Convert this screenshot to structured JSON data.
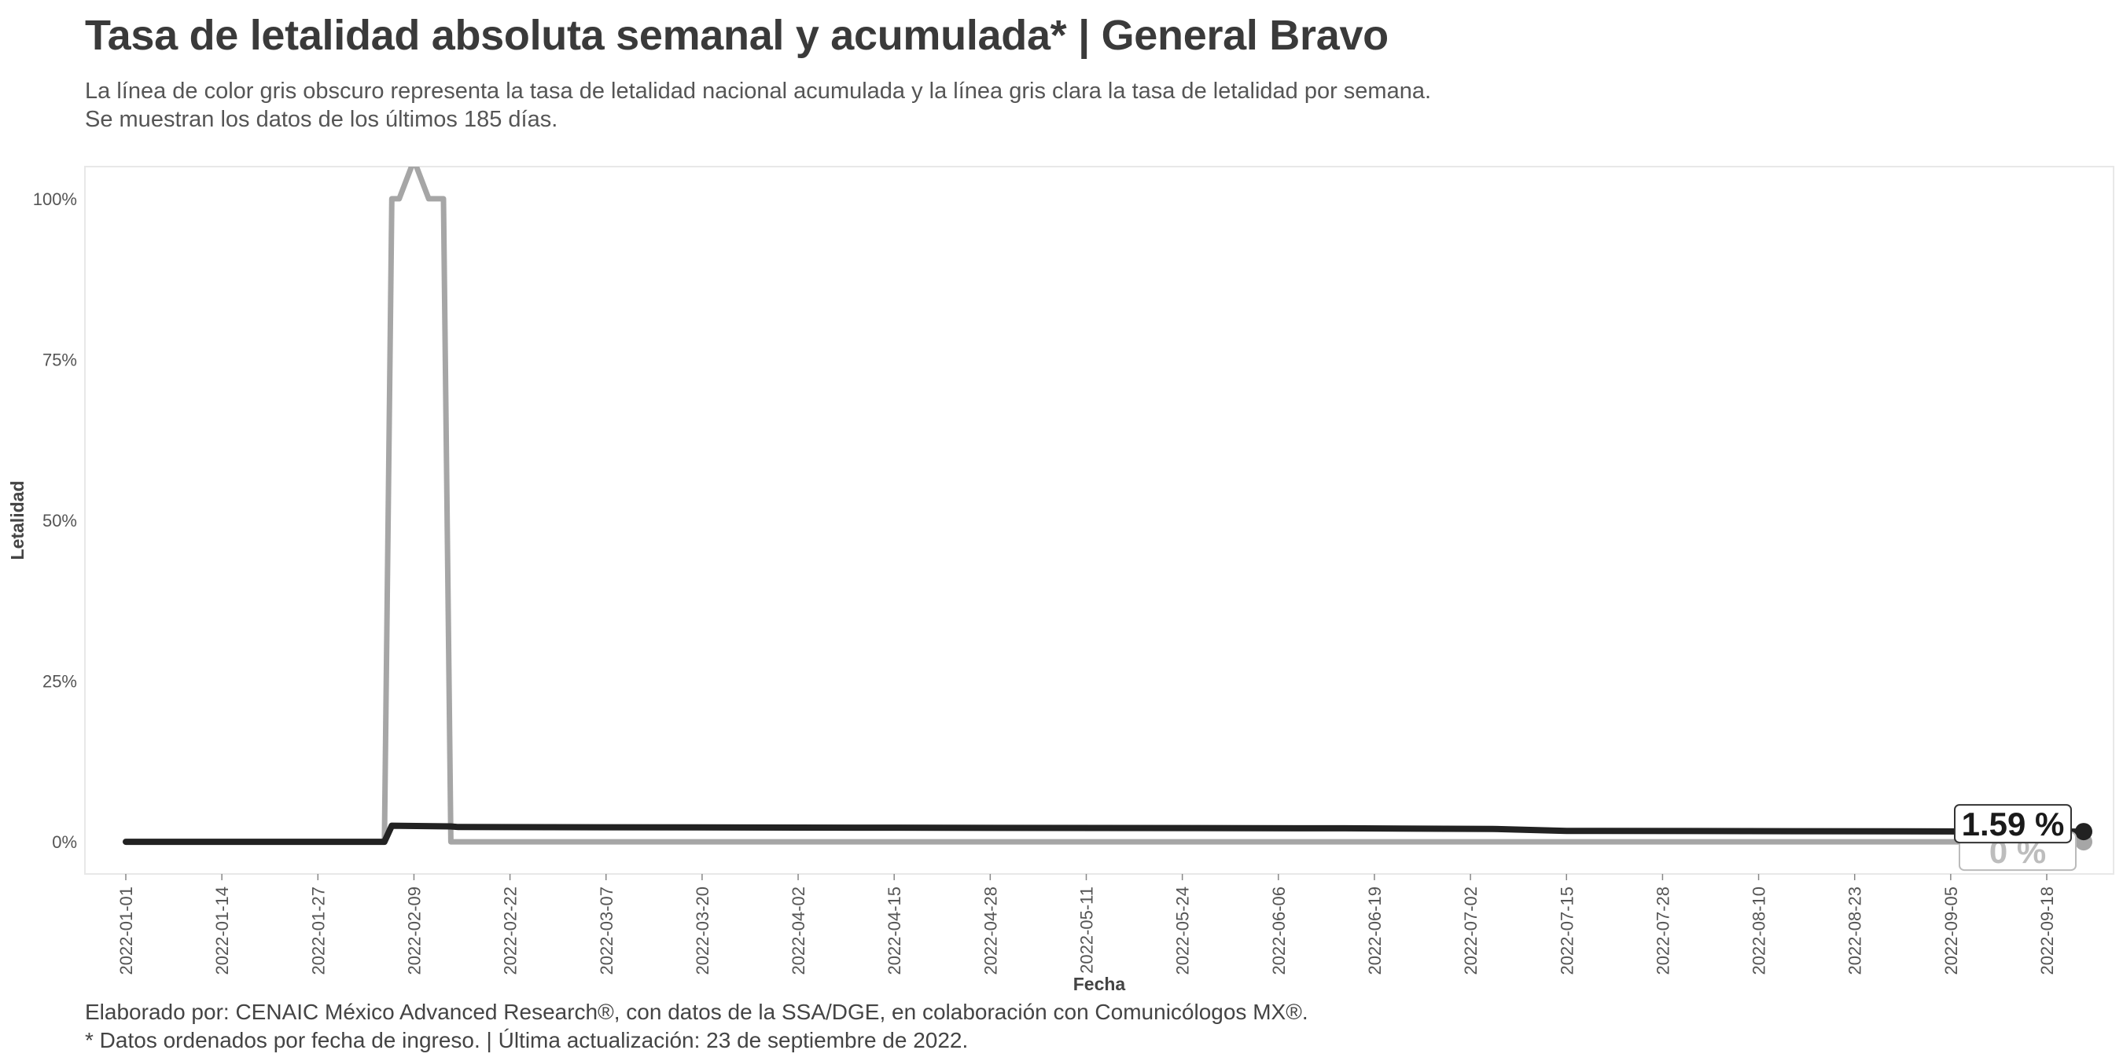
{
  "title": "Tasa de letalidad absoluta semanal y acumulada* | General Bravo",
  "subtitle_lines": [
    "La línea de color gris obscuro representa la tasa de letalidad nacional acumulada y la línea gris clara la tasa de letalidad por semana.",
    "Se muestran los datos de los últimos 185 días."
  ],
  "caption_lines": [
    "Elaborado por: CENAIC México Advanced Research®, con datos de la SSA/DGE, en colaboración con Comunicólogos MX®.",
    "* Datos ordenados por fecha de ingreso. | Última actualización: 23 de septiembre de 2022."
  ],
  "colors": {
    "cumulative": "#222222",
    "weekly": "#a6a6a6",
    "panel_border": "#e8e8e8"
  },
  "chart_data": {
    "type": "line",
    "title": "Tasa de letalidad absoluta semanal y acumulada* | General Bravo",
    "xlabel": "Fecha",
    "ylabel": "Letalidad",
    "x_range": [
      "2022-01-01",
      "2022-09-23"
    ],
    "ylim": [
      -5,
      105
    ],
    "y_ticks": [
      0,
      25,
      50,
      75,
      100
    ],
    "y_tick_labels": [
      "0%",
      "25%",
      "50%",
      "75%",
      "100%"
    ],
    "x_ticks": [
      "2022-01-01",
      "2022-01-14",
      "2022-01-27",
      "2022-02-09",
      "2022-02-22",
      "2022-03-07",
      "2022-03-20",
      "2022-04-02",
      "2022-04-15",
      "2022-04-28",
      "2022-05-11",
      "2022-05-24",
      "2022-06-06",
      "2022-06-19",
      "2022-07-02",
      "2022-07-15",
      "2022-07-28",
      "2022-08-10",
      "2022-08-23",
      "2022-09-05",
      "2022-09-18"
    ],
    "grid": false,
    "legend": "none",
    "series": [
      {
        "key": "weekly",
        "points": [
          [
            "2022-01-01",
            0
          ],
          [
            "2022-02-05",
            0
          ],
          [
            "2022-02-06",
            100
          ],
          [
            "2022-02-07",
            100
          ],
          [
            "2022-02-09",
            106
          ],
          [
            "2022-02-11",
            100
          ],
          [
            "2022-02-13",
            100
          ],
          [
            "2022-02-14",
            0
          ],
          [
            "2022-09-23",
            0
          ]
        ]
      },
      {
        "key": "cumulative",
        "points": [
          [
            "2022-01-01",
            0
          ],
          [
            "2022-02-05",
            0
          ],
          [
            "2022-02-06",
            2.5
          ],
          [
            "2022-02-14",
            2.4
          ],
          [
            "2022-02-15",
            2.3
          ],
          [
            "2022-04-10",
            2.2
          ],
          [
            "2022-06-15",
            2.1
          ],
          [
            "2022-07-05",
            2.0
          ],
          [
            "2022-07-15",
            1.7
          ],
          [
            "2022-08-15",
            1.65
          ],
          [
            "2022-09-23",
            1.59
          ]
        ]
      }
    ],
    "end_labels": [
      {
        "series": "cumulative",
        "text": "1.59 %"
      },
      {
        "series": "weekly",
        "text": "0 %"
      }
    ]
  }
}
